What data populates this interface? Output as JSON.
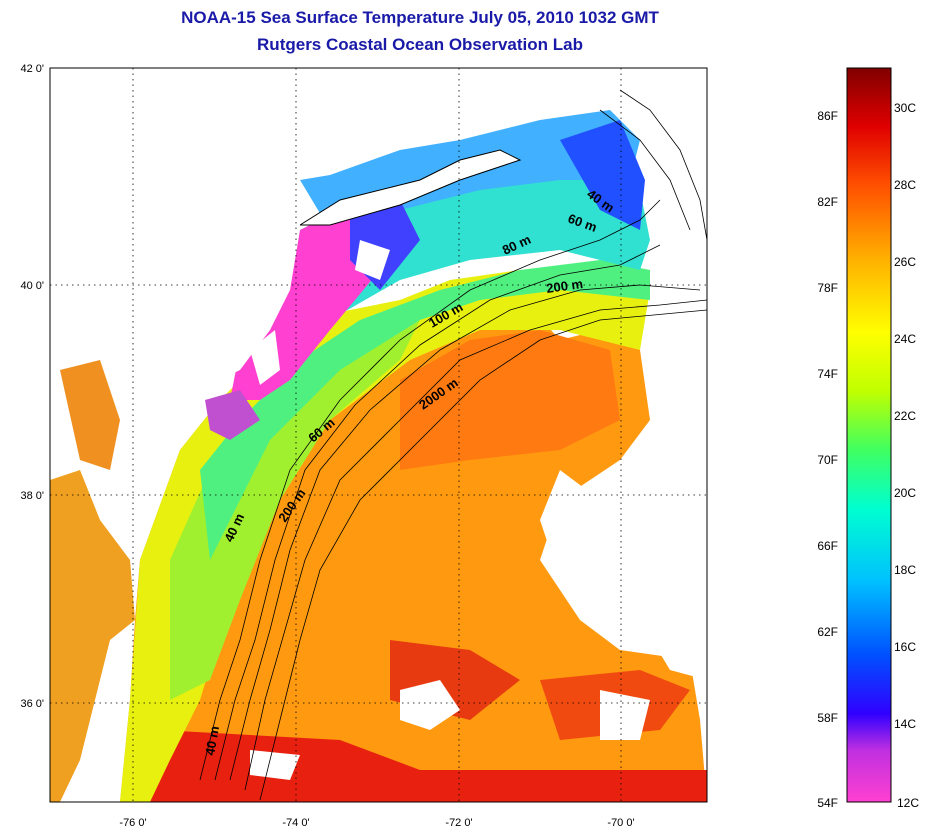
{
  "title_line1": "NOAA-15 Sea Surface Temperature July 05, 2010 1032 GMT",
  "title_line2": "Rutgers Coastal Ocean Observation Lab",
  "map": {
    "lat_labels": [
      {
        "value": 42,
        "label": "42 0'"
      },
      {
        "value": 40,
        "label": "40 0'"
      },
      {
        "value": 38,
        "label": "38 0'"
      },
      {
        "value": 36,
        "label": "36 0'"
      }
    ],
    "lon_labels": [
      {
        "value": -76,
        "label": "-76 0'"
      },
      {
        "value": -74,
        "label": "-74 0'"
      },
      {
        "value": -72,
        "label": "-72 0'"
      },
      {
        "value": -70,
        "label": "-70 0'"
      }
    ],
    "contour_labels": [
      "40 m",
      "60 m",
      "80 m",
      "200 m",
      "100 m",
      "2000 m",
      "60 m",
      "200 m",
      "40 m",
      "40 m"
    ]
  },
  "colorbar": {
    "fahrenheit_labels": [
      "86F",
      "82F",
      "78F",
      "74F",
      "70F",
      "66F",
      "62F",
      "58F",
      "54F"
    ],
    "celsius_labels": [
      "30C",
      "28C",
      "26C",
      "24C",
      "22C",
      "20C",
      "18C",
      "16C",
      "14C",
      "12C"
    ],
    "colors": [
      "#ff40d0",
      "#8000ff",
      "#0000ff",
      "#0080ff",
      "#00ffff",
      "#00ff80",
      "#80ff00",
      "#ffff00",
      "#ffa000",
      "#ff4000",
      "#e00000",
      "#800000"
    ]
  }
}
